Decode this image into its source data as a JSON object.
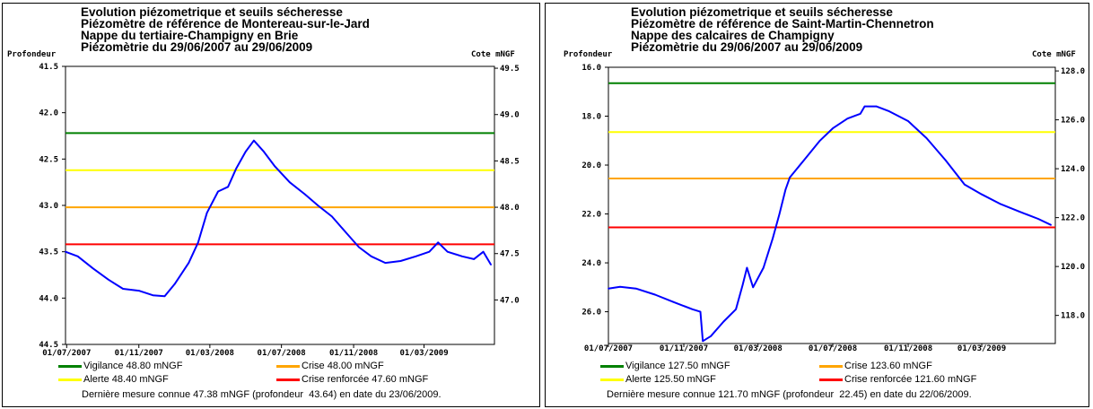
{
  "charts": [
    {
      "title_lines": [
        "Evolution piézometrique et seuils sécheresse",
        "Piézomètre de référence de Montereau-sur-le-Jard",
        "Nappe du tertiaire-Champigny en Brie",
        "Piézomètrie du 29/06/2007 au 29/06/2009"
      ],
      "left_axis_name": "Profondeur",
      "right_axis_name": "Cote mNGF",
      "last_measure": "Dernière mesure connue 47.38 mNGF (profondeur  43.64) en date du 23/06/2009.",
      "legend": [
        {
          "label": "Vigilance 48.80 mNGF",
          "color": "#008000"
        },
        {
          "label": "Crise 48.00 mNGF",
          "color": "#FFA500"
        },
        {
          "label": "Alerte 48.40 mNGF",
          "color": "#FFFF00"
        },
        {
          "label": "Crise renforcée 47.60 mNGF",
          "color": "#FF0000"
        }
      ]
    },
    {
      "title_lines": [
        "Evolution piézometrique et seuils sécheresse",
        "Piézomètre de référence de Saint-Martin-Chennetron",
        "Nappe des calcaires de Champigny",
        "Piézomètrie du 29/06/2007 au 29/06/2009"
      ],
      "left_axis_name": "Profondeur",
      "right_axis_name": "Cote mNGF",
      "last_measure": "Dernière mesure connue 121.70 mNGF (profondeur  22.45) en date du 22/06/2009.",
      "legend": [
        {
          "label": "Vigilance 127.50 mNGF",
          "color": "#008000"
        },
        {
          "label": "Crise 123.60 mNGF",
          "color": "#FFA500"
        },
        {
          "label": "Alerte 125.50 mNGF",
          "color": "#FFFF00"
        },
        {
          "label": "Crise renforcée 121.60 mNGF",
          "color": "#FF0000"
        }
      ]
    }
  ],
  "chart_data": [
    {
      "type": "line",
      "x_ticks": [
        "01/07/2007",
        "01/11/2007",
        "01/03/2008",
        "01/07/2008",
        "01/11/2008",
        "01/03/2009"
      ],
      "x_range": [
        "2007-06-29",
        "2009-06-29"
      ],
      "left_ticks": [
        "41.5",
        "42.0",
        "42.5",
        "43.0",
        "43.5",
        "44.0",
        "44.5"
      ],
      "right_ticks": [
        "49.5",
        "49.0",
        "48.5",
        "48.0",
        "47.5",
        "47.0"
      ],
      "ylim_depth": [
        41.5,
        44.5
      ],
      "ylim_ngf": [
        46.52,
        49.52
      ],
      "thresholds": [
        {
          "name": "Vigilance",
          "value": 48.8,
          "color": "#008000"
        },
        {
          "name": "Alerte",
          "value": 48.4,
          "color": "#FFFF00"
        },
        {
          "name": "Crise",
          "value": 48.0,
          "color": "#FFA500"
        },
        {
          "name": "Crise renforcée",
          "value": 47.6,
          "color": "#FF0000"
        }
      ],
      "series": [
        {
          "color": "#0000FF",
          "points": [
            [
              "2007-06-29",
              43.5
            ],
            [
              "2007-07-20",
              43.55
            ],
            [
              "2007-08-15",
              43.68
            ],
            [
              "2007-09-10",
              43.8
            ],
            [
              "2007-10-05",
              43.9
            ],
            [
              "2007-11-01",
              43.92
            ],
            [
              "2007-11-25",
              43.97
            ],
            [
              "2007-12-15",
              43.98
            ],
            [
              "2008-01-01",
              43.85
            ],
            [
              "2008-01-25",
              43.62
            ],
            [
              "2008-02-10",
              43.4
            ],
            [
              "2008-02-25",
              43.08
            ],
            [
              "2008-03-15",
              42.85
            ],
            [
              "2008-04-01",
              42.8
            ],
            [
              "2008-04-15",
              42.6
            ],
            [
              "2008-05-01",
              42.42
            ],
            [
              "2008-05-15",
              42.3
            ],
            [
              "2008-06-01",
              42.42
            ],
            [
              "2008-06-20",
              42.58
            ],
            [
              "2008-07-15",
              42.75
            ],
            [
              "2008-08-10",
              42.88
            ],
            [
              "2008-09-01",
              43.0
            ],
            [
              "2008-09-25",
              43.12
            ],
            [
              "2008-10-20",
              43.3
            ],
            [
              "2008-11-10",
              43.45
            ],
            [
              "2008-12-01",
              43.55
            ],
            [
              "2008-12-25",
              43.62
            ],
            [
              "2009-01-20",
              43.6
            ],
            [
              "2009-02-15",
              43.55
            ],
            [
              "2009-03-10",
              43.5
            ],
            [
              "2009-03-25",
              43.4
            ],
            [
              "2009-04-10",
              43.5
            ],
            [
              "2009-05-05",
              43.55
            ],
            [
              "2009-05-25",
              43.58
            ],
            [
              "2009-06-10",
              43.5
            ],
            [
              "2009-06-23",
              43.64
            ]
          ]
        }
      ]
    },
    {
      "type": "line",
      "x_ticks": [
        "01/07/2007",
        "01/11/2007",
        "01/03/2008",
        "01/07/2008",
        "01/11/2008",
        "01/03/2009"
      ],
      "x_range": [
        "2007-07-01",
        "2009-06-29"
      ],
      "left_ticks": [
        "16.0",
        "18.0",
        "20.0",
        "22.0",
        "24.0",
        "26.0"
      ],
      "right_ticks": [
        "128.0",
        "126.0",
        "124.0",
        "122.0",
        "120.0",
        "118.0"
      ],
      "ylim_depth": [
        16.0,
        27.3
      ],
      "ylim_ngf": [
        116.85,
        128.15
      ],
      "thresholds": [
        {
          "name": "Vigilance",
          "value": 127.5,
          "color": "#008000"
        },
        {
          "name": "Alerte",
          "value": 125.5,
          "color": "#FFFF00"
        },
        {
          "name": "Crise",
          "value": 123.6,
          "color": "#FFA500"
        },
        {
          "name": "Crise renforcée",
          "value": 121.6,
          "color": "#FF0000"
        }
      ],
      "series": [
        {
          "color": "#0000FF",
          "points": [
            [
              "2007-07-01",
              25.05
            ],
            [
              "2007-07-20",
              24.98
            ],
            [
              "2007-08-15",
              25.05
            ],
            [
              "2007-09-15",
              25.3
            ],
            [
              "2007-10-15",
              25.6
            ],
            [
              "2007-11-15",
              25.9
            ],
            [
              "2007-11-28",
              26.0
            ],
            [
              "2007-12-02",
              27.2
            ],
            [
              "2007-12-15",
              27.0
            ],
            [
              "2008-01-05",
              26.4
            ],
            [
              "2008-01-25",
              25.9
            ],
            [
              "2008-02-05",
              24.9
            ],
            [
              "2008-02-12",
              24.2
            ],
            [
              "2008-02-22",
              25.0
            ],
            [
              "2008-03-10",
              24.2
            ],
            [
              "2008-03-25",
              23.0
            ],
            [
              "2008-04-05",
              22.0
            ],
            [
              "2008-04-15",
              21.0
            ],
            [
              "2008-04-22",
              20.5
            ],
            [
              "2008-05-15",
              19.8
            ],
            [
              "2008-06-10",
              19.0
            ],
            [
              "2008-07-01",
              18.5
            ],
            [
              "2008-07-25",
              18.1
            ],
            [
              "2008-08-15",
              17.9
            ],
            [
              "2008-08-22",
              17.6
            ],
            [
              "2008-09-10",
              17.6
            ],
            [
              "2008-10-01",
              17.8
            ],
            [
              "2008-11-01",
              18.2
            ],
            [
              "2008-12-01",
              18.9
            ],
            [
              "2009-01-01",
              19.8
            ],
            [
              "2009-02-01",
              20.8
            ],
            [
              "2009-03-01",
              21.2
            ],
            [
              "2009-04-01",
              21.6
            ],
            [
              "2009-05-01",
              21.9
            ],
            [
              "2009-06-01",
              22.2
            ],
            [
              "2009-06-22",
              22.45
            ]
          ]
        }
      ]
    }
  ]
}
